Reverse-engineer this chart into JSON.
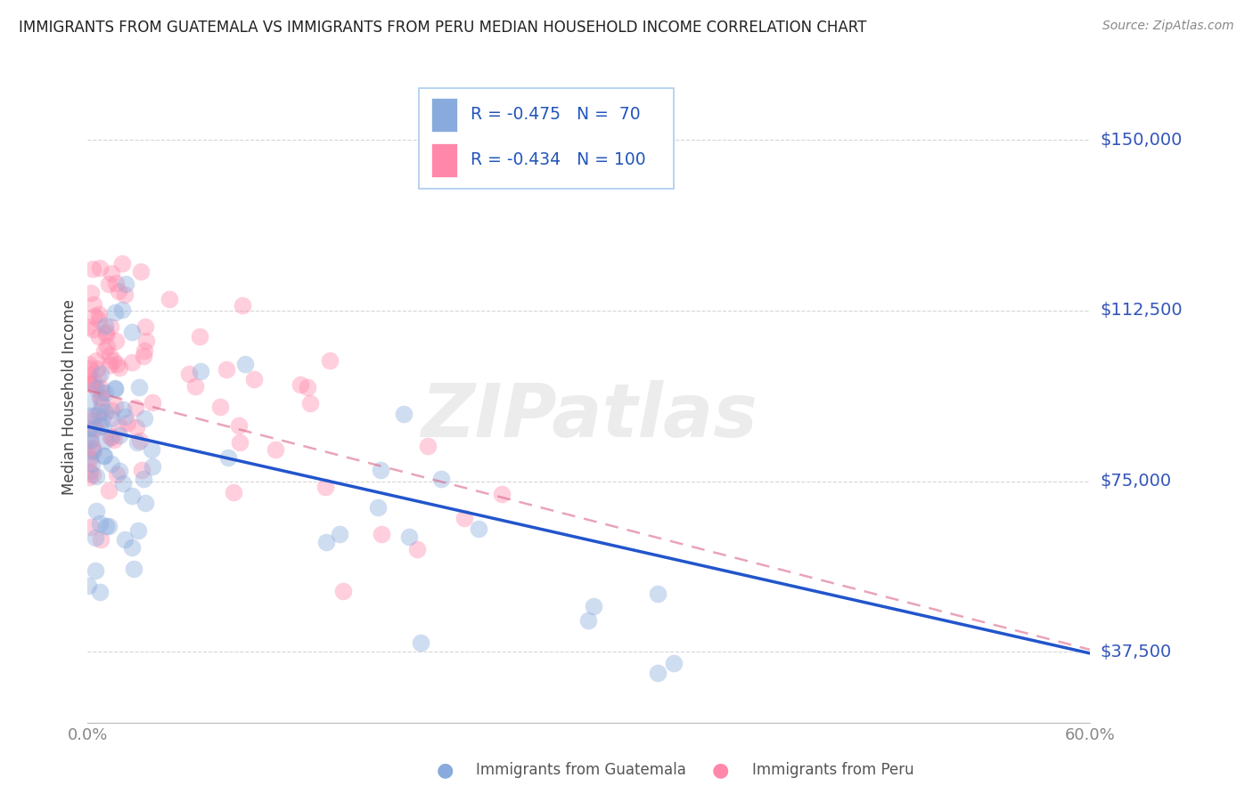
{
  "title": "IMMIGRANTS FROM GUATEMALA VS IMMIGRANTS FROM PERU MEDIAN HOUSEHOLD INCOME CORRELATION CHART",
  "source": "Source: ZipAtlas.com",
  "ylabel": "Median Household Income",
  "y_tick_labels": [
    "$150,000",
    "$112,500",
    "$75,000",
    "$37,500"
  ],
  "y_values": [
    150000,
    112500,
    75000,
    37500
  ],
  "legend_guat": "R = -0.475   N =  70",
  "legend_peru": "R = -0.434   N = 100",
  "guatemala_color": "#88AADD",
  "peru_color": "#FF88AA",
  "trendline_guatemala_color": "#2255CC",
  "trendline_peru_color": "#DD6688",
  "watermark": "ZIPatlas",
  "xlim": [
    0.0,
    0.6
  ],
  "ylim": [
    22000,
    165000
  ],
  "background_color": "#FFFFFF",
  "grid_color": "#CCCCCC",
  "ylabel_color": "#3355BB",
  "tick_color": "#888888"
}
